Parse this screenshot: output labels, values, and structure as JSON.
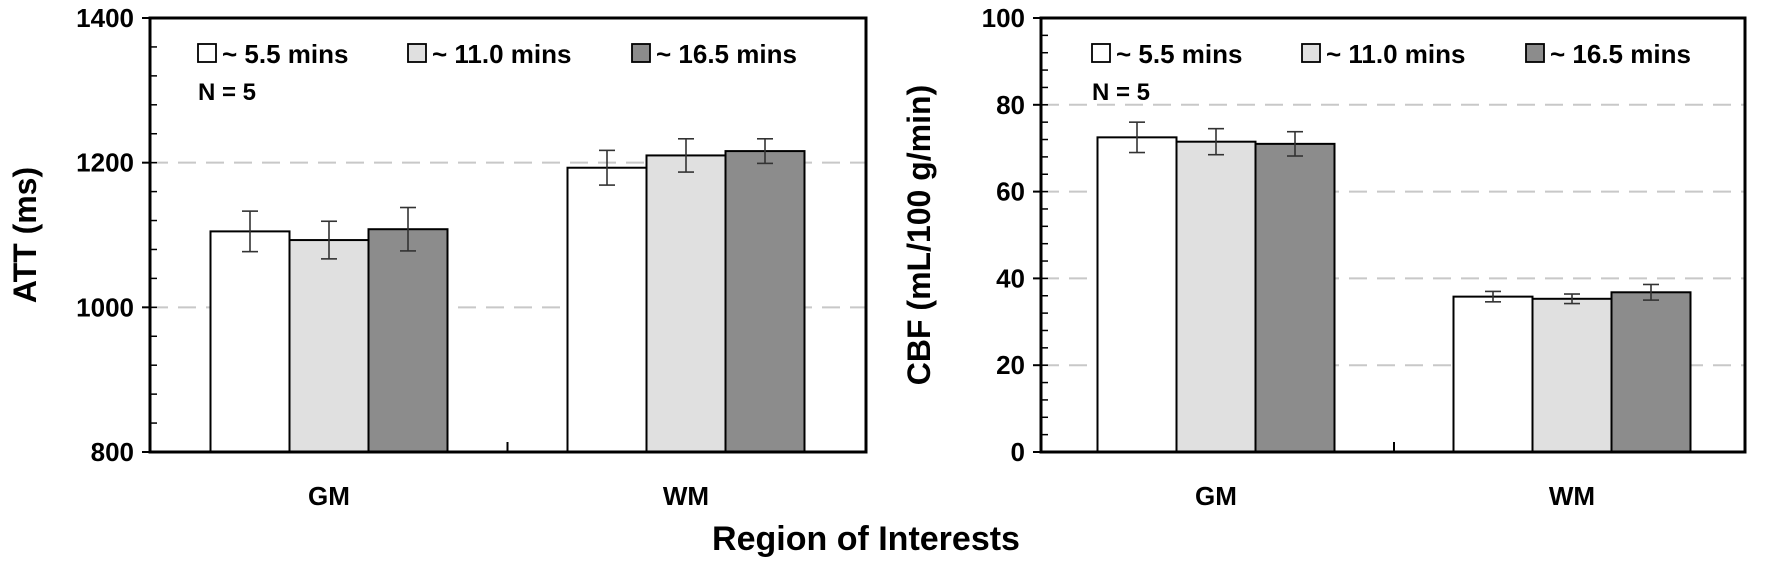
{
  "figure": {
    "shared_xlabel": "Region of Interests"
  },
  "chart_data": [
    {
      "type": "bar",
      "title": "",
      "xlabel": "",
      "ylabel": "ATT (ms)",
      "ylim": [
        800,
        1400
      ],
      "yticks": [
        800,
        1000,
        1200,
        1400
      ],
      "grid": "horizontal dashed",
      "categories": [
        "GM",
        "WM"
      ],
      "annotation": "N = 5",
      "legend_position": "top-left",
      "series": [
        {
          "name": "~ 5.5 mins",
          "color": "#ffffff",
          "values": [
            1105,
            1193
          ],
          "errors": [
            28,
            24
          ]
        },
        {
          "name": "~ 11.0 mins",
          "color": "#e0e0e0",
          "values": [
            1093,
            1210
          ],
          "errors": [
            26,
            23
          ]
        },
        {
          "name": "~ 16.5 mins",
          "color": "#8c8c8c",
          "values": [
            1108,
            1216
          ],
          "errors": [
            30,
            17
          ]
        }
      ]
    },
    {
      "type": "bar",
      "title": "",
      "xlabel": "",
      "ylabel": "CBF (mL/100 g/min)",
      "ylim": [
        0,
        100
      ],
      "yticks": [
        0,
        20,
        40,
        60,
        80,
        100
      ],
      "grid": "horizontal dashed",
      "categories": [
        "GM",
        "WM"
      ],
      "annotation": "N = 5",
      "legend_position": "top-left",
      "series": [
        {
          "name": "~ 5.5 mins",
          "color": "#ffffff",
          "values": [
            72.5,
            35.8
          ],
          "errors": [
            3.5,
            1.2
          ]
        },
        {
          "name": "~ 11.0 mins",
          "color": "#e0e0e0",
          "values": [
            71.5,
            35.3
          ],
          "errors": [
            3.0,
            1.1
          ]
        },
        {
          "name": "~ 16.5 mins",
          "color": "#8c8c8c",
          "values": [
            71.0,
            36.8
          ],
          "errors": [
            2.8,
            1.8
          ]
        }
      ]
    }
  ]
}
